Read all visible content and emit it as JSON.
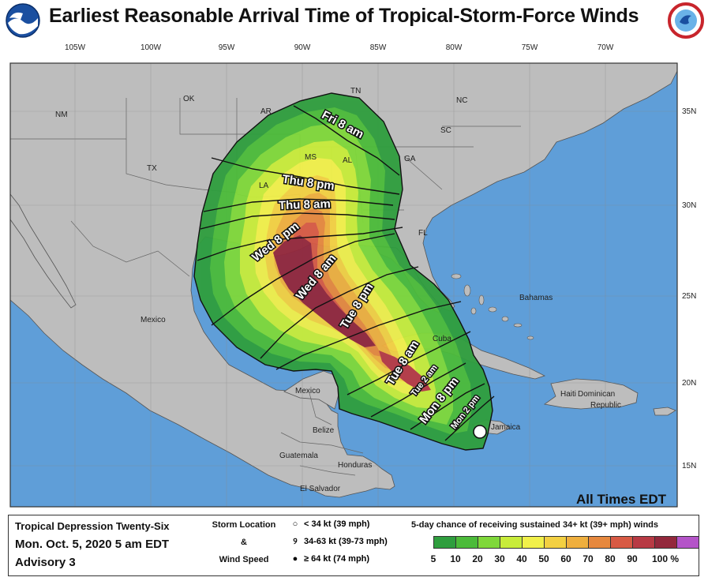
{
  "title": "Earliest Reasonable Arrival Time of Tropical-Storm-Force Winds",
  "logos": {
    "left": "NOAA",
    "right": "NATIONAL WEATHER SERVICE"
  },
  "map": {
    "top_lon_labels": [
      "105W",
      "100W",
      "95W",
      "90W",
      "85W",
      "80W",
      "75W",
      "70W"
    ],
    "right_lat_labels": [
      "35N",
      "30N",
      "25N",
      "20N",
      "15N"
    ],
    "places": [
      {
        "name": "NM"
      },
      {
        "name": "OK"
      },
      {
        "name": "AR"
      },
      {
        "name": "TN"
      },
      {
        "name": "NC"
      },
      {
        "name": "SC"
      },
      {
        "name": "TX"
      },
      {
        "name": "MS"
      },
      {
        "name": "AL"
      },
      {
        "name": "GA"
      },
      {
        "name": "LA"
      },
      {
        "name": "FL"
      },
      {
        "name": "Bahamas"
      },
      {
        "name": "Mexico"
      },
      {
        "name": "Cuba"
      },
      {
        "name": "Haiti"
      },
      {
        "name": "Dominican"
      },
      {
        "name": "Republic"
      },
      {
        "name": "Belize"
      },
      {
        "name": "Guatemala"
      },
      {
        "name": "Honduras"
      },
      {
        "name": "El Salvador"
      },
      {
        "name": "Jamaica"
      },
      {
        "name": "Mexico"
      }
    ],
    "time_labels": [
      "Fri   8 am",
      "Thu   8 pm",
      "Thu   8 am",
      "Wed 8 pm",
      "Wed 8 am",
      "Tue   8 pm",
      "Tue 8 am",
      "Tue   2 am",
      "Mon 8 pm",
      "Mon   2 pm"
    ],
    "all_times": "All Times EDT",
    "colors": {
      "ocean": "#5f9ed8",
      "land": "#bdbdbd"
    }
  },
  "legend": {
    "storm_name": "Tropical Depression Twenty-Six",
    "date": "Mon. Oct. 5, 2020  5 am EDT",
    "advisory": "Advisory 3",
    "storm_location": "Storm Location",
    "amp": "&",
    "wind_speed": "Wind Speed",
    "kt_rows": [
      "< 34 kt (39 mph)",
      "34-63 kt (39-73 mph)",
      "≥ 64 kt (74 mph)"
    ],
    "prob_title": "5-day chance of receiving sustained 34+ kt (39+ mph) winds",
    "scale_ticks": [
      "5",
      "10",
      "20",
      "30",
      "40",
      "50",
      "60",
      "70",
      "80",
      "90",
      "100 %"
    ],
    "scale_colors": [
      "#2f9e3e",
      "#4cbb3a",
      "#7fd83a",
      "#c8ec3a",
      "#f1f04a",
      "#f3d042",
      "#efaf3e",
      "#e6883e",
      "#d85a44",
      "#b83a44",
      "#93283c",
      "#b454c8"
    ]
  }
}
